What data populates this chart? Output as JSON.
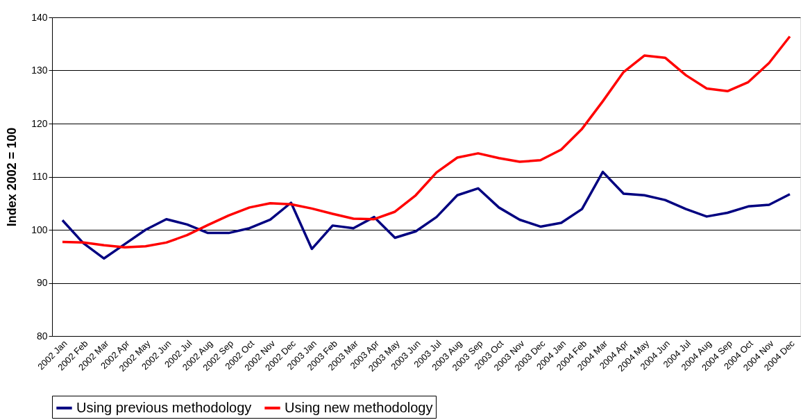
{
  "chart_data": {
    "type": "line",
    "ylabel": "Index 2002 = 100",
    "categories": [
      "2002 Jan",
      "2002 Feb",
      "2002 Mar",
      "2002 Apr",
      "2002 May",
      "2002 Jun",
      "2002 Jul",
      "2002 Aug",
      "2002 Sep",
      "2002 Oct",
      "2002 Nov",
      "2002 Dec",
      "2003 Jan",
      "2003 Feb",
      "2003 Mar",
      "2003 Apr",
      "2003 May",
      "2003 Jun",
      "2003 Jul",
      "2003 Aug",
      "2003 Sep",
      "2003 Oct",
      "2003 Nov",
      "2003 Dec",
      "2004 Jan",
      "2004 Feb",
      "2004 Mar",
      "2004 Apr",
      "2004 May",
      "2004 Jun",
      "2004 Jul",
      "2004 Aug",
      "2004 Sep",
      "2004 Oct",
      "2004 Nov",
      "2004 Dec"
    ],
    "series": [
      {
        "name": "Using previous methodology",
        "color": "#000080",
        "values": [
          101.8,
          97.5,
          94.6,
          97.3,
          100.0,
          102.0,
          101.0,
          99.4,
          99.4,
          100.3,
          101.9,
          105.1,
          96.4,
          100.8,
          100.3,
          102.4,
          98.5,
          99.7,
          102.4,
          106.5,
          107.8,
          104.2,
          101.9,
          100.6,
          101.3,
          103.9,
          110.9,
          106.8,
          106.5,
          105.6,
          103.9,
          102.5,
          103.2,
          104.4,
          104.7,
          106.7
        ]
      },
      {
        "name": "Using new methodology",
        "color": "#ff0000",
        "values": [
          97.7,
          97.6,
          97.1,
          96.7,
          96.9,
          97.6,
          99.0,
          100.9,
          102.7,
          104.2,
          105.0,
          104.8,
          104.0,
          103.0,
          102.1,
          102.0,
          103.4,
          106.5,
          110.8,
          113.6,
          114.4,
          113.5,
          112.8,
          113.1,
          115.1,
          119.0,
          124.2,
          129.7,
          132.8,
          132.4,
          129.1,
          126.6,
          126.1,
          127.8,
          131.4,
          136.4
        ]
      }
    ],
    "ylim": [
      80,
      140
    ],
    "yticks": [
      80,
      90,
      100,
      110,
      120,
      130,
      140
    ],
    "grid": "y",
    "legend": "bottom",
    "marker": "none",
    "line_style": "solid"
  }
}
